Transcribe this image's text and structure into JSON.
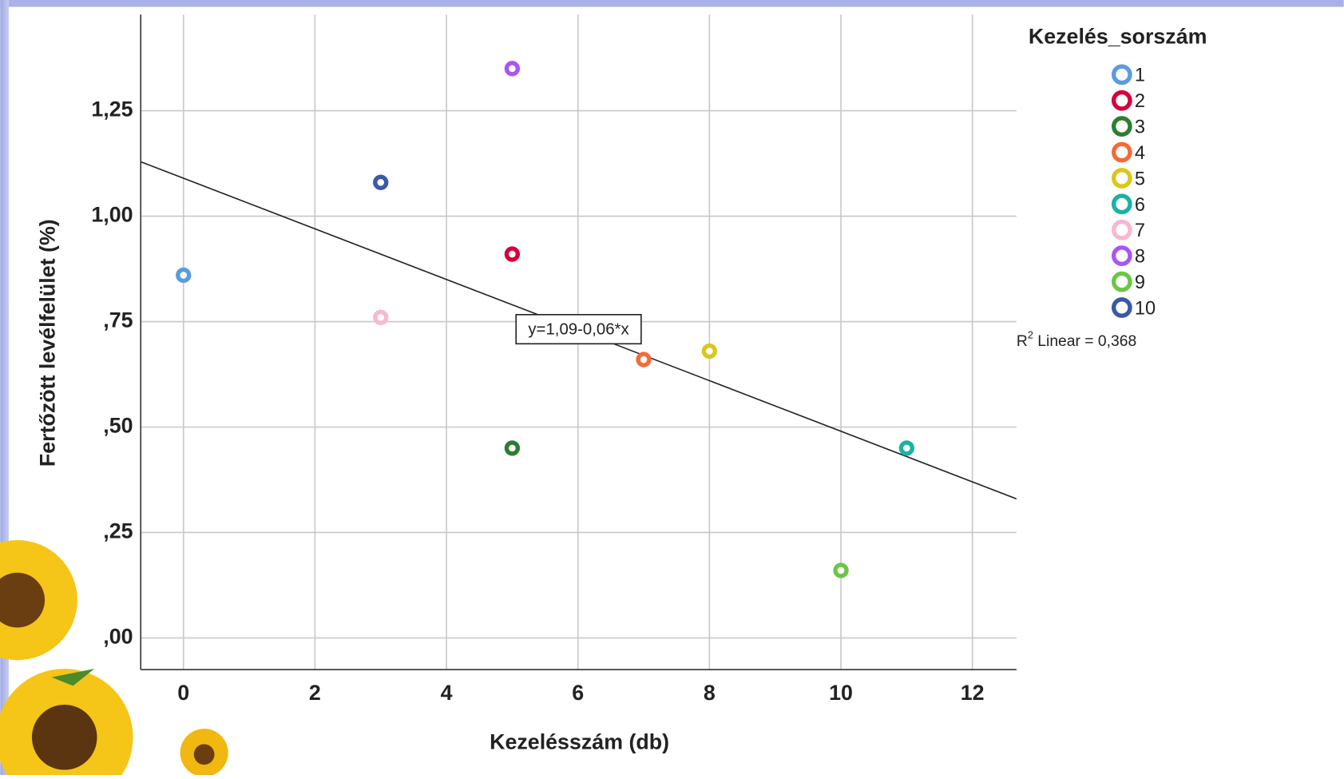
{
  "chart_data": {
    "type": "scatter",
    "x_label": "Kezelésszám (db)",
    "y_label": "Fertőzött levélfelület (%)",
    "legend_title": "Kezelés_sorszám",
    "legend": "right",
    "grid": true,
    "xlim": [
      -0.65,
      12.67
    ],
    "ylim": [
      -0.075,
      1.478
    ],
    "xticks": [
      0,
      2,
      4,
      6,
      8,
      10,
      12
    ],
    "yticks": [
      {
        "value": 0,
        "label": ",00"
      },
      {
        "value": 0.25,
        "label": ",25"
      },
      {
        "value": 0.5,
        "label": ",50"
      },
      {
        "value": 0.75,
        "label": ",75"
      },
      {
        "value": 1,
        "label": "1,00"
      },
      {
        "value": 1.25,
        "label": "1,25"
      }
    ],
    "series": [
      {
        "name": "1",
        "color": "#5b9be0",
        "x": [
          0
        ],
        "values": [
          0.86
        ]
      },
      {
        "name": "2",
        "color": "#d6003a",
        "x": [
          5
        ],
        "values": [
          0.91
        ]
      },
      {
        "name": "3",
        "color": "#2e7d32",
        "x": [
          5
        ],
        "values": [
          0.45
        ]
      },
      {
        "name": "4",
        "color": "#f26b38",
        "x": [
          7
        ],
        "values": [
          0.66
        ]
      },
      {
        "name": "5",
        "color": "#d8c81a",
        "x": [
          8
        ],
        "values": [
          0.68
        ]
      },
      {
        "name": "6",
        "color": "#1ab3a3",
        "x": [
          11
        ],
        "values": [
          0.45
        ]
      },
      {
        "name": "7",
        "color": "#f9b8d0",
        "x": [
          3
        ],
        "values": [
          0.76
        ]
      },
      {
        "name": "8",
        "color": "#a855f7",
        "x": [
          5
        ],
        "values": [
          1.35
        ]
      },
      {
        "name": "9",
        "color": "#6cc644",
        "x": [
          10
        ],
        "values": [
          0.16
        ]
      },
      {
        "name": "10",
        "color": "#3a5aa8",
        "x": [
          3
        ],
        "values": [
          1.08
        ]
      }
    ],
    "fit": {
      "label": "y=1,09-0,06*x",
      "intercept": 1.09,
      "slope": -0.06
    },
    "r2_symbol": "R",
    "r2_exponent": "2",
    "r2_text": " Linear = 0,368"
  }
}
